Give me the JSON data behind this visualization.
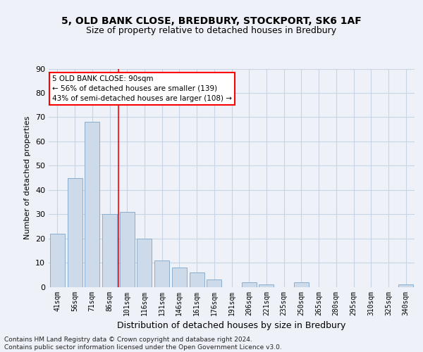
{
  "title1": "5, OLD BANK CLOSE, BREDBURY, STOCKPORT, SK6 1AF",
  "title2": "Size of property relative to detached houses in Bredbury",
  "xlabel": "Distribution of detached houses by size in Bredbury",
  "ylabel": "Number of detached properties",
  "categories": [
    "41sqm",
    "56sqm",
    "71sqm",
    "86sqm",
    "101sqm",
    "116sqm",
    "131sqm",
    "146sqm",
    "161sqm",
    "176sqm",
    "191sqm",
    "206sqm",
    "221sqm",
    "235sqm",
    "250sqm",
    "265sqm",
    "280sqm",
    "295sqm",
    "310sqm",
    "325sqm",
    "340sqm"
  ],
  "values": [
    22,
    45,
    68,
    30,
    31,
    20,
    11,
    8,
    6,
    3,
    0,
    2,
    1,
    0,
    2,
    0,
    0,
    0,
    0,
    0,
    1
  ],
  "bar_color": "#ccdaea",
  "bar_edge_color": "#8aaece",
  "grid_color": "#c8d4e4",
  "annotation_box_text": "5 OLD BANK CLOSE: 90sqm\n← 56% of detached houses are smaller (139)\n43% of semi-detached houses are larger (108) →",
  "annotation_box_color": "white",
  "annotation_box_edge_color": "red",
  "vline_x": 3.5,
  "vline_color": "red",
  "ylim": [
    0,
    90
  ],
  "yticks": [
    0,
    10,
    20,
    30,
    40,
    50,
    60,
    70,
    80,
    90
  ],
  "footnote": "Contains HM Land Registry data © Crown copyright and database right 2024.\nContains public sector information licensed under the Open Government Licence v3.0.",
  "background_color": "#eef2f8",
  "title1_fontsize": 10,
  "title2_fontsize": 9,
  "ylabel_fontsize": 8,
  "xlabel_fontsize": 9,
  "tick_fontsize": 8,
  "xtick_fontsize": 7
}
